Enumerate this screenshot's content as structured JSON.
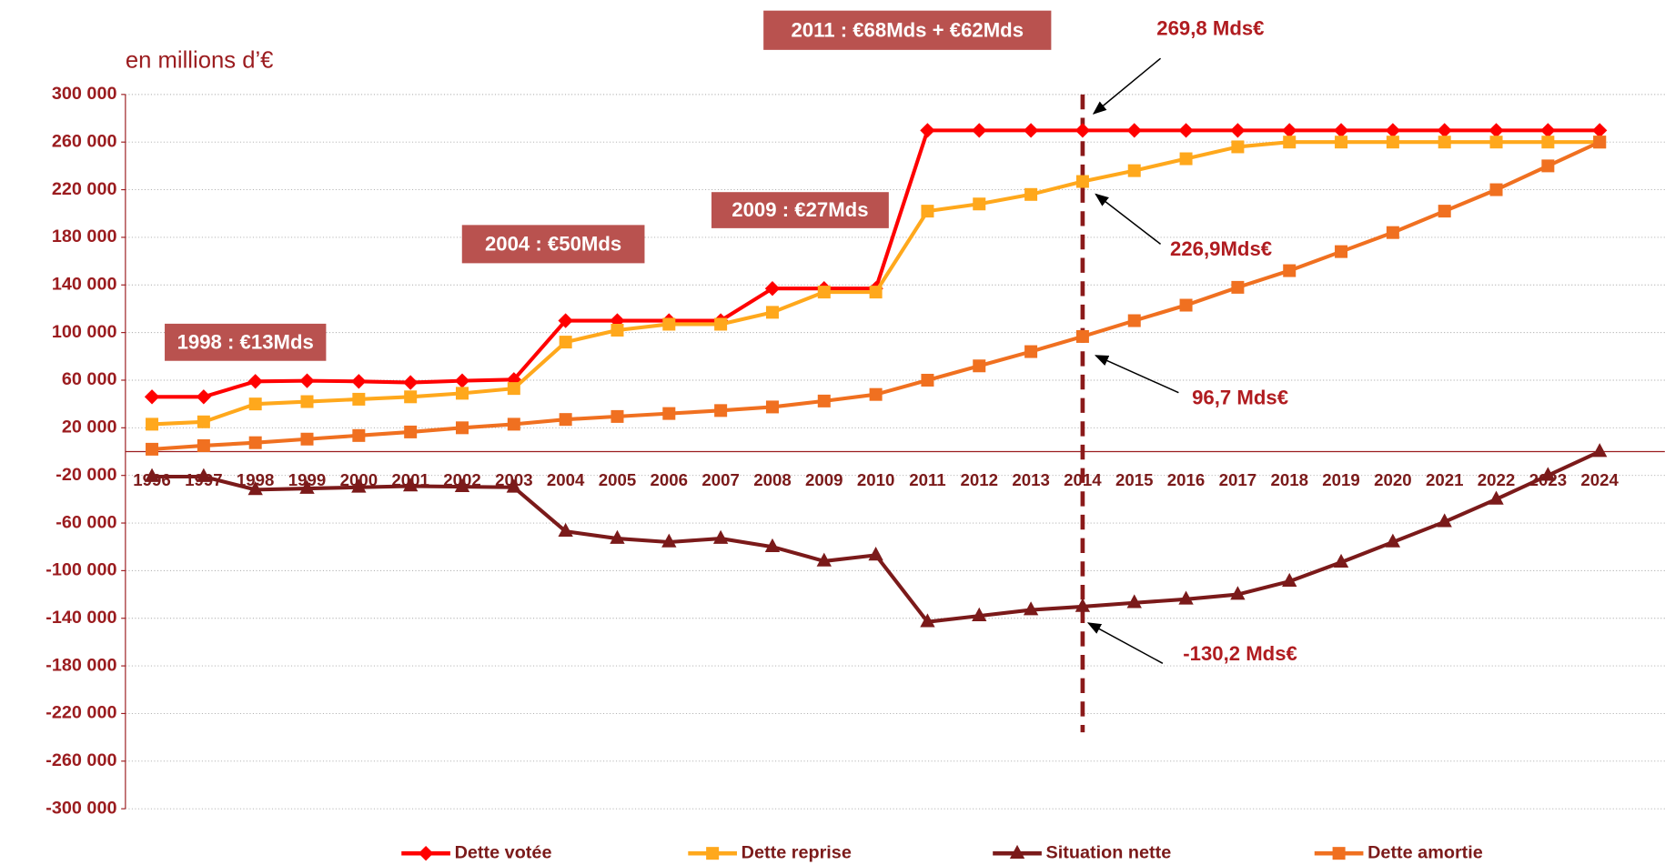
{
  "chart_data": {
    "type": "line",
    "unit_label": "en millions d’€",
    "categories": [
      "1996",
      "1997",
      "1998",
      "1999",
      "2000",
      "2001",
      "2002",
      "2003",
      "2004",
      "2005",
      "2006",
      "2007",
      "2008",
      "2009",
      "2010",
      "2011",
      "2012",
      "2013",
      "2014",
      "2015",
      "2016",
      "2017",
      "2018",
      "2019",
      "2020",
      "2021",
      "2022",
      "2023",
      "2024"
    ],
    "series": [
      {
        "name": "Dette votée",
        "color": "#ff0000",
        "marker": "diamond",
        "values": [
          46000,
          46000,
          59000,
          59500,
          59000,
          58000,
          59500,
          60500,
          110000,
          110000,
          110000,
          110000,
          137000,
          137000,
          137000,
          269800,
          269800,
          269800,
          269800,
          269800,
          269800,
          269800,
          269800,
          269800,
          269800,
          269800,
          269800,
          269800,
          269800
        ]
      },
      {
        "name": "Dette reprise",
        "color": "#ffa81c",
        "marker": "square",
        "values": [
          23000,
          25000,
          40000,
          42000,
          44000,
          46000,
          49000,
          53000,
          92000,
          102000,
          107000,
          107000,
          117000,
          134000,
          134000,
          202000,
          208000,
          216000,
          226900,
          236000,
          246000,
          256000,
          260000,
          260000,
          260000,
          260000,
          260000,
          260000,
          260000
        ]
      },
      {
        "name": "Situation nette",
        "color": "#7b1a1a",
        "marker": "triangle",
        "values": [
          -21000,
          -21000,
          -32000,
          -31000,
          -30000,
          -29000,
          -29500,
          -30000,
          -67000,
          -73000,
          -76000,
          -73000,
          -80000,
          -92000,
          -87000,
          -143000,
          -138000,
          -133000,
          -130200,
          -127000,
          -124000,
          -120000,
          -109000,
          -93000,
          -76000,
          -59000,
          -40000,
          -20000,
          0
        ]
      },
      {
        "name": "Dette amortie",
        "color": "#f07020",
        "marker": "square",
        "values": [
          2000,
          5000,
          7500,
          10500,
          13500,
          16500,
          20000,
          23000,
          27000,
          29500,
          32000,
          34500,
          37500,
          42500,
          48000,
          60000,
          72000,
          84000,
          96700,
          110000,
          123000,
          138000,
          152000,
          168000,
          184000,
          202000,
          220000,
          240000,
          260000
        ]
      }
    ],
    "ylim": [
      -300000,
      300000
    ],
    "yticks": [
      {
        "value": 300000,
        "label": "300 000"
      },
      {
        "value": 260000,
        "label": "260 000"
      },
      {
        "value": 220000,
        "label": "220 000"
      },
      {
        "value": 180000,
        "label": "180 000"
      },
      {
        "value": 140000,
        "label": "140 000"
      },
      {
        "value": 100000,
        "label": "100 000"
      },
      {
        "value": 60000,
        "label": "60 000"
      },
      {
        "value": 20000,
        "label": "20 000"
      },
      {
        "value": -20000,
        "label": "-20 000"
      },
      {
        "value": -60000,
        "label": "-60 000"
      },
      {
        "value": -100000,
        "label": "-100 000"
      },
      {
        "value": -140000,
        "label": "-140 000"
      },
      {
        "value": -180000,
        "label": "-180 000"
      },
      {
        "value": -220000,
        "label": "-220 000"
      },
      {
        "value": -260000,
        "label": "-260 000"
      },
      {
        "value": -300000,
        "label": "-300 000"
      }
    ],
    "grid": true,
    "legend": "bottom",
    "vline_category": "2014",
    "boxed_annotations": [
      "1998 : €13Mds",
      "2004 : €50Mds",
      "2009 : €27Mds",
      "2011 : €68Mds + €62Mds"
    ],
    "arrow_annotations": [
      "269,8 Mds€",
      "226,9Mds€",
      "96,7 Mds€",
      "-130,2 Mds€"
    ]
  }
}
